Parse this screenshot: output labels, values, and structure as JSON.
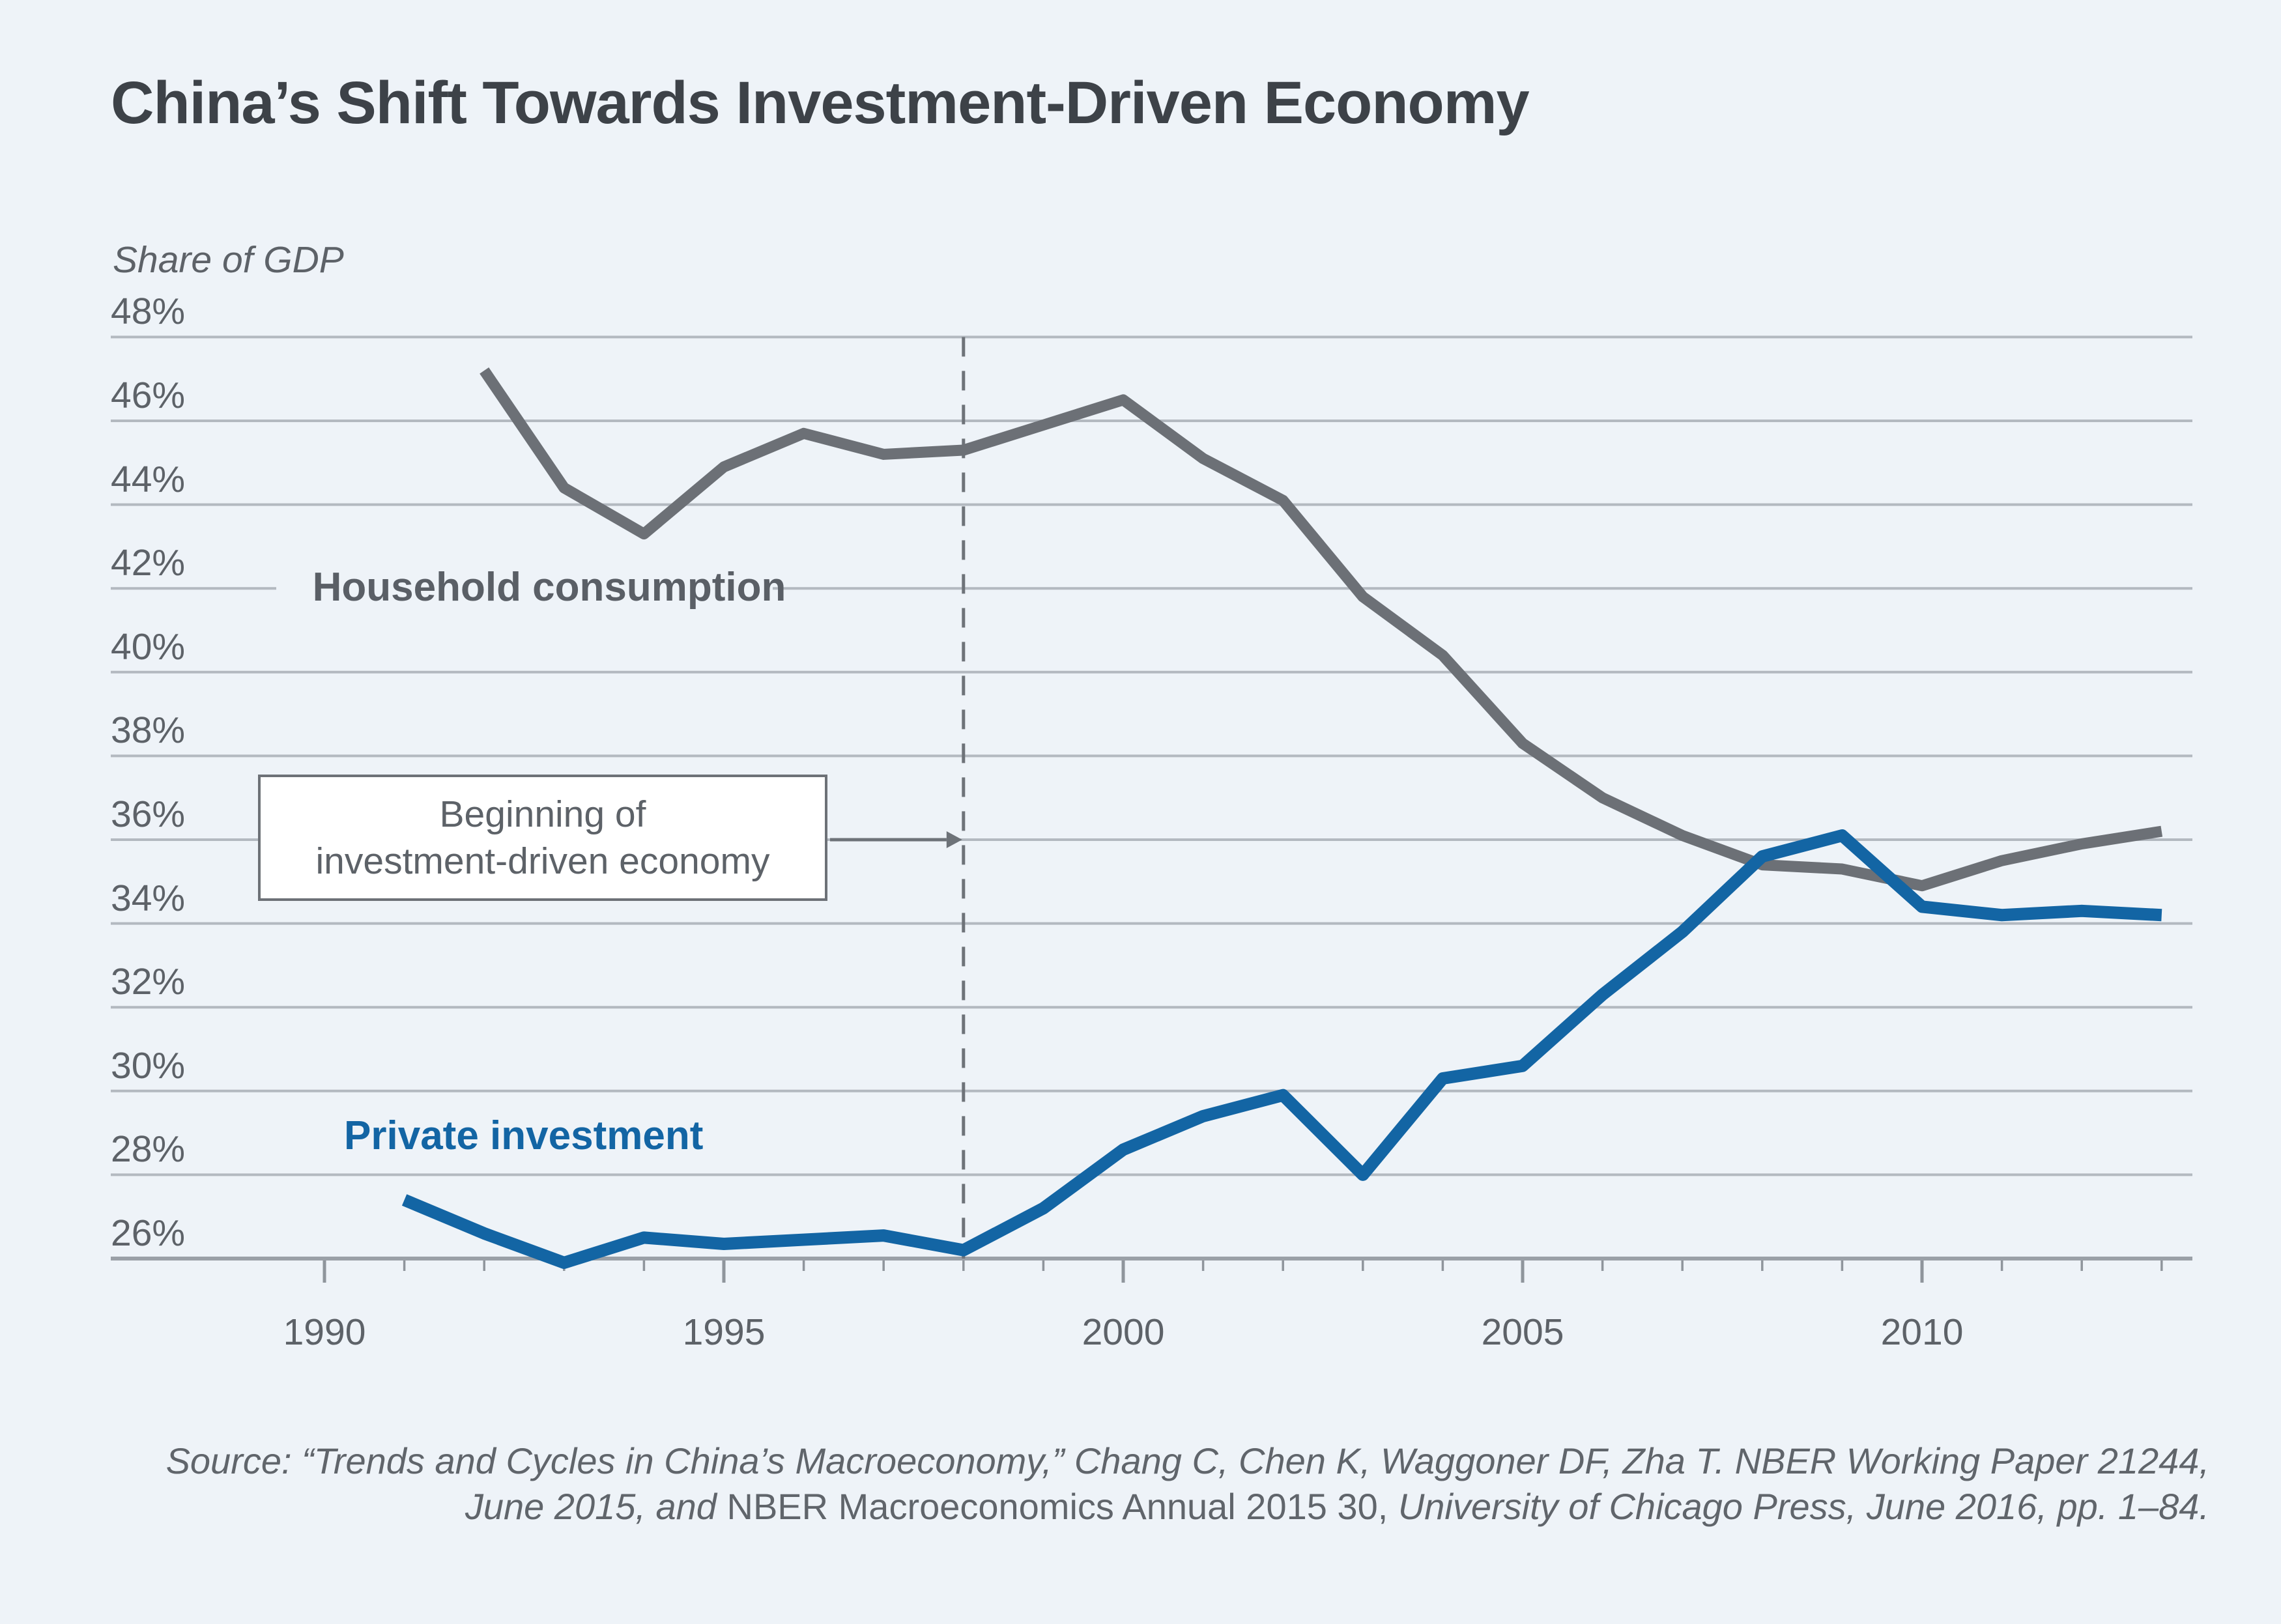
{
  "header": {
    "title": "China’s Shift Towards Investment-Driven Economy"
  },
  "chart_data": {
    "type": "line",
    "title": "China’s Shift Towards Investment-Driven Economy",
    "ylabel": "Share of GDP",
    "ylim": [
      26,
      48
    ],
    "ytick_step": 2,
    "ytick_labels": [
      "48%",
      "46%",
      "44%",
      "42%",
      "40%",
      "38%",
      "36%",
      "34%",
      "32%",
      "30%",
      "28%",
      "26%"
    ],
    "ytick_values": [
      48,
      46,
      44,
      42,
      40,
      38,
      36,
      34,
      32,
      30,
      28,
      26
    ],
    "xlim": [
      1990,
      2013
    ],
    "xtick_major": [
      1990,
      1995,
      2000,
      2005,
      2010
    ],
    "xtick_minor_every": 1,
    "grid": true,
    "legend": "inline-labels",
    "colors": {
      "background": "#eef3f8",
      "gridline": "#b3b9c0",
      "axis": "#9aa0a7",
      "consumption_line": "#6c7076",
      "investment_line": "#1365a4",
      "dashed_line": "#6e7379",
      "title_text": "#3d4248",
      "label_text": "#5d6268"
    },
    "series": [
      {
        "name": "Household consumption",
        "color": "#6c7076",
        "x": [
          1992,
          1993,
          1994,
          1995,
          1996,
          1997,
          1998,
          1999,
          2000,
          2001,
          2002,
          2003,
          2004,
          2005,
          2006,
          2007,
          2008,
          2009,
          2010,
          2011,
          2012,
          2013
        ],
        "values": [
          47.2,
          44.4,
          43.3,
          44.9,
          45.7,
          45.2,
          45.3,
          45.9,
          46.5,
          45.1,
          44.1,
          41.8,
          40.4,
          38.3,
          37.0,
          36.1,
          35.4,
          35.3,
          34.9,
          35.5,
          35.9,
          36.2
        ]
      },
      {
        "name": "Private investment",
        "color": "#1365a4",
        "x": [
          1991,
          1992,
          1993,
          1994,
          1995,
          1996,
          1997,
          1998,
          1999,
          2000,
          2001,
          2002,
          2003,
          2004,
          2005,
          2006,
          2007,
          2008,
          2009,
          2010,
          2011,
          2012,
          2013
        ],
        "values": [
          27.4,
          26.6,
          25.9,
          26.5,
          26.35,
          26.45,
          26.55,
          26.2,
          27.2,
          28.6,
          29.4,
          29.9,
          28.0,
          30.3,
          30.6,
          32.3,
          33.8,
          35.6,
          36.1,
          34.4,
          34.2,
          34.3,
          34.2
        ]
      }
    ],
    "dashed_line_year": 1998,
    "annotation": {
      "line1": "Beginning of",
      "line2": "investment-driven economy",
      "arrow_points_to_year": 1998,
      "arrow_level_percent": 36
    }
  },
  "labels": {
    "consumption": "Household consumption",
    "investment": "Private investment"
  },
  "source": {
    "line1": "Source: “Trends and Cycles in China’s Macroeconomy,” Chang C, Chen K, Waggoner DF, Zha T. NBER Working Paper 21244,",
    "line2_italic_pre": "June 2015, and ",
    "line2_roman": "NBER Macroeconomics Annual 2015 30,",
    "line2_italic_post": "  University of Chicago Press, June 2016, pp. 1–84."
  }
}
